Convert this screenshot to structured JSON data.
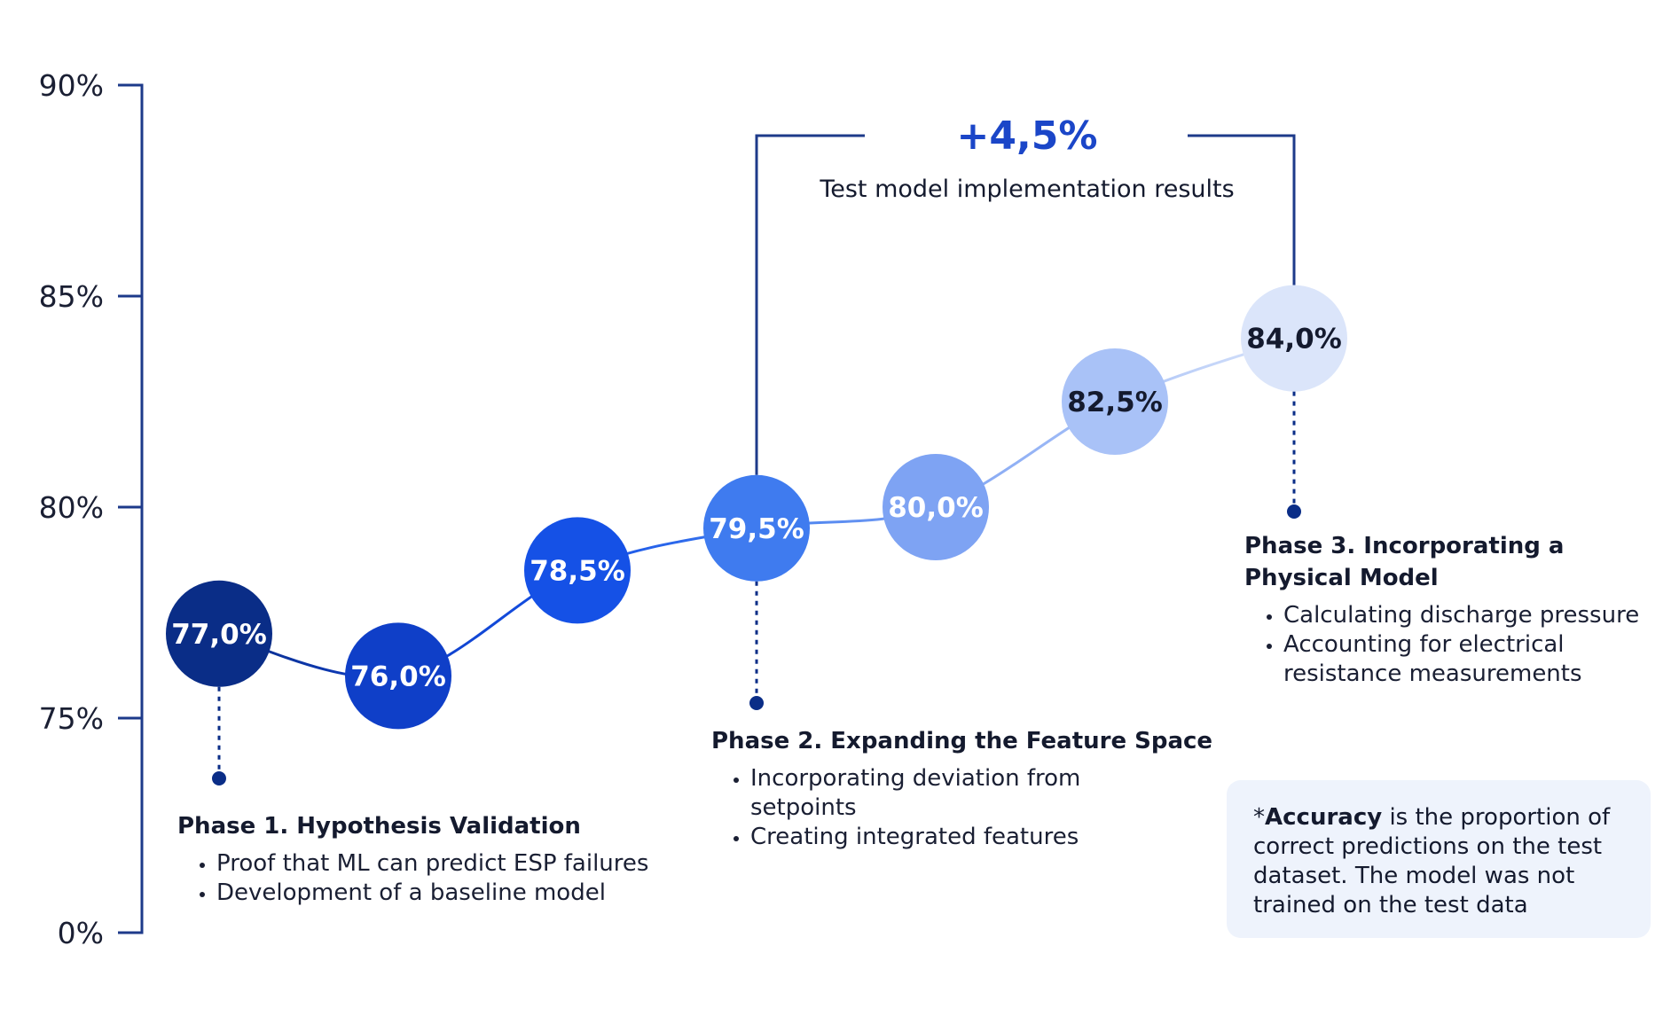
{
  "chart_data": {
    "type": "line",
    "y_axis": {
      "ticks": [
        "90%",
        "85%",
        "80%",
        "75%",
        "0%"
      ],
      "tick_values": [
        90,
        85,
        80,
        75,
        0
      ],
      "axis_break_between": [
        0,
        75
      ]
    },
    "series": [
      {
        "values": [
          77.0,
          76.0,
          78.5,
          79.5,
          80.0,
          82.5,
          84.0
        ],
        "labels": [
          "77,0%",
          "76,0%",
          "78,5%",
          "79,5%",
          "80,0%",
          "82,5%",
          "84,0%"
        ],
        "colors": [
          "#0a2d87",
          "#0f3fc8",
          "#1551e6",
          "#3f7bef",
          "#7ea3f3",
          "#a9c2f7",
          "#dbe5fa"
        ],
        "label_colors": [
          "#ffffff",
          "#ffffff",
          "#ffffff",
          "#ffffff",
          "#ffffff",
          "#141a2e",
          "#141a2e"
        ]
      }
    ],
    "annotation": {
      "delta": "+4,5%",
      "caption": "Test model implementation results",
      "from_point": 3,
      "to_point": 6
    },
    "axis_color": "#1d3a8a",
    "accent": "#1b46c8"
  },
  "phases": [
    {
      "title": "Phase 1. Hypothesis Validation",
      "items": [
        "Proof that ML can predict ESP failures",
        "Development of a baseline model"
      ]
    },
    {
      "title": "Phase 2. Expanding the Feature Space",
      "items": [
        "Incorporating deviation from setpoints",
        "Creating integrated features"
      ]
    },
    {
      "title": "Phase 3. Incorporating a Physical Model",
      "items": [
        "Calculating discharge pressure",
        "Accounting for electrical resistance measurements"
      ]
    }
  ],
  "note": {
    "prefix": "*",
    "term": "Accuracy",
    "text": " is the proportion of correct predictions on the test dataset. The model was not trained on the test data"
  }
}
